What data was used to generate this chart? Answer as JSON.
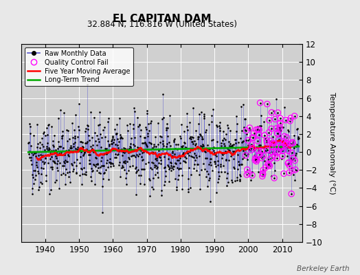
{
  "title": "EL CAPITAN DAM",
  "subtitle": "32.884 N, 116.816 W (United States)",
  "ylabel": "Temperature Anomaly (°C)",
  "watermark": "Berkeley Earth",
  "xlim": [
    1933,
    2016
  ],
  "ylim": [
    -10,
    12
  ],
  "yticks": [
    -10,
    -8,
    -6,
    -4,
    -2,
    0,
    2,
    4,
    6,
    8,
    10,
    12
  ],
  "xticks": [
    1940,
    1950,
    1960,
    1970,
    1980,
    1990,
    2000,
    2010
  ],
  "fig_bg_color": "#e8e8e8",
  "plot_bg_color": "#d0d0d0",
  "grid_color": "white",
  "raw_line_color": "#5555cc",
  "raw_dot_color": "black",
  "ma_color": "red",
  "trend_color": "#00aa00",
  "qc_color": "magenta",
  "seed": 42,
  "year_start": 1935,
  "year_end": 2014,
  "ma_window": 60,
  "qc_fail_start": 1999,
  "qc_fail_end": 2014,
  "noise_std": 2.0,
  "trend_slope": 0.005
}
